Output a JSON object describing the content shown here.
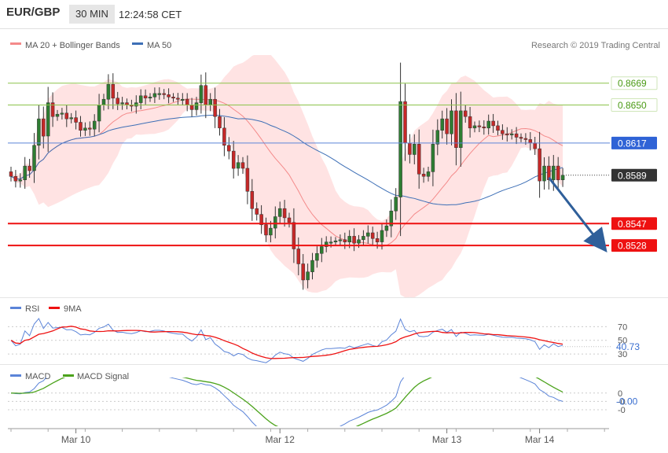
{
  "header": {
    "pair": "EUR/GBP",
    "timeframe": "30 MIN",
    "time": "12:24:58 CET"
  },
  "copyright": "Research © 2019 Trading Central",
  "colors": {
    "up": "#2e7d32",
    "down": "#c62828",
    "ma20": "#f48a8a",
    "band_fill": "#ffd9d9",
    "ma50": "#3d6fb6",
    "target_green": "#8bc34a",
    "support_red": "#ee1111",
    "pivot_blue": "#5b84d8",
    "rsi": "#5b84d8",
    "rsi_ma": "#ee1111",
    "macd": "#5b84d8",
    "macd_signal": "#4ca31c",
    "arrow": "#2f5f9a"
  },
  "chart_data": [
    {
      "type": "candlestick",
      "name": "price",
      "legend": [
        {
          "label": "MA 20 + Bollinger Bands",
          "color": "#f48a8a"
        },
        {
          "label": "MA 50",
          "color": "#3d6fb6"
        }
      ],
      "ylim": [
        0.8485,
        0.869
      ],
      "x_ticks": [
        {
          "label": "Mar 10",
          "index": 14
        },
        {
          "label": "Mar 12",
          "index": 58
        },
        {
          "label": "Mar 13",
          "index": 94
        },
        {
          "label": "Mar 14",
          "index": 114
        }
      ],
      "levels": [
        {
          "value": 0.8669,
          "label": "0.8669",
          "kind": "resistance"
        },
        {
          "value": 0.865,
          "label": "0.8650",
          "kind": "resistance"
        },
        {
          "value": 0.8617,
          "label": "0.8617",
          "kind": "pivot"
        },
        {
          "value": 0.8589,
          "label": "0.8589",
          "kind": "last"
        },
        {
          "value": 0.8547,
          "label": "0.8547",
          "kind": "support"
        },
        {
          "value": 0.8528,
          "label": "0.8528",
          "kind": "support"
        }
      ],
      "forecast_arrow": {
        "from_index": 116,
        "from_value": 0.8589,
        "to_index": 126,
        "to_value": 0.853
      },
      "closes": [
        0.8588,
        0.8584,
        0.8585,
        0.8597,
        0.8593,
        0.8615,
        0.8638,
        0.8623,
        0.8652,
        0.864,
        0.8642,
        0.8643,
        0.8638,
        0.8639,
        0.8635,
        0.8628,
        0.863,
        0.8629,
        0.8636,
        0.865,
        0.8655,
        0.8668,
        0.8656,
        0.8651,
        0.8652,
        0.865,
        0.8649,
        0.8652,
        0.8658,
        0.8656,
        0.8657,
        0.866,
        0.866,
        0.8659,
        0.8657,
        0.8656,
        0.8655,
        0.8655,
        0.865,
        0.8646,
        0.8652,
        0.8667,
        0.865,
        0.8655,
        0.864,
        0.863,
        0.8615,
        0.861,
        0.8595,
        0.86,
        0.8595,
        0.8575,
        0.856,
        0.8555,
        0.8546,
        0.8537,
        0.8543,
        0.8553,
        0.856,
        0.8552,
        0.8548,
        0.8525,
        0.8512,
        0.8498,
        0.8505,
        0.8515,
        0.8521,
        0.8527,
        0.8531,
        0.8531,
        0.8532,
        0.8533,
        0.8531,
        0.8536,
        0.853,
        0.8533,
        0.8536,
        0.8539,
        0.8534,
        0.8531,
        0.8541,
        0.8545,
        0.8558,
        0.857,
        0.8653,
        0.8617,
        0.8607,
        0.8616,
        0.859,
        0.8588,
        0.8592,
        0.8616,
        0.8628,
        0.8638,
        0.8625,
        0.8645,
        0.8613,
        0.8645,
        0.864,
        0.863,
        0.8632,
        0.8631,
        0.863,
        0.8636,
        0.8632,
        0.8628,
        0.8625,
        0.8624,
        0.8625,
        0.8622,
        0.8621,
        0.862,
        0.8617,
        0.8612,
        0.8584,
        0.8597,
        0.8585,
        0.8597,
        0.8585,
        0.8589
      ]
    },
    {
      "type": "line",
      "name": "rsi",
      "legend": [
        {
          "label": "RSI",
          "color": "#5b84d8"
        },
        {
          "label": "9MA",
          "color": "#ee1111"
        }
      ],
      "ylim": [
        22,
        82
      ],
      "y_ticks": [
        30,
        50,
        70
      ],
      "current": {
        "value": 40.73,
        "label": "40.73"
      }
    },
    {
      "type": "line",
      "name": "macd",
      "legend": [
        {
          "label": "MACD",
          "color": "#5b84d8"
        },
        {
          "label": "MACD Signal",
          "color": "#4ca31c"
        }
      ],
      "ylim": [
        -0.0019,
        0.0007
      ],
      "y_ticks": [
        {
          "value": 0,
          "label": "0"
        },
        {
          "value": -0.0005,
          "label": "-0"
        },
        {
          "value": -0.001,
          "label": "-0"
        }
      ],
      "current": {
        "value": -0.0005,
        "label": "-0.00"
      }
    }
  ]
}
